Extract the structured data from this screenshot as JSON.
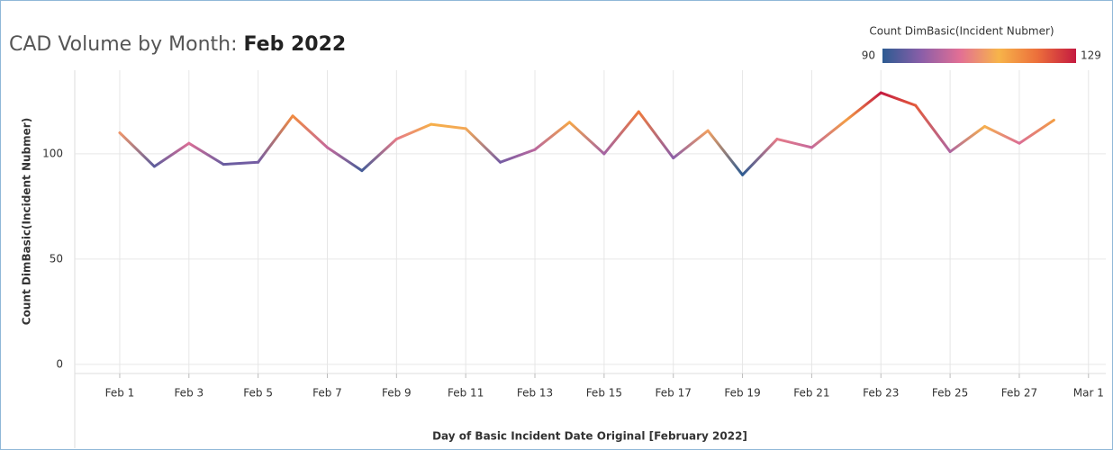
{
  "chart_data": {
    "type": "line",
    "title": "CAD Volume by Month:",
    "title_highlight": "Feb 2022",
    "y_label": "Count DimBasic(Incident Nubmer)",
    "x_label": "Day of Basic Incident Date Original [February 2022]",
    "x": [
      1,
      2,
      3,
      4,
      5,
      6,
      7,
      8,
      9,
      10,
      11,
      12,
      13,
      14,
      15,
      16,
      17,
      18,
      19,
      20,
      21,
      22,
      23,
      24,
      25,
      26,
      27,
      28
    ],
    "values": [
      110,
      94,
      105,
      95,
      96,
      118,
      103,
      92,
      107,
      114,
      112,
      96,
      102,
      115,
      100,
      120,
      98,
      111,
      90,
      107,
      103,
      116,
      129,
      123,
      101,
      113,
      105,
      116
    ],
    "xlim": [
      -0.3,
      29.5
    ],
    "xticks": [
      {
        "value": 1,
        "label": "Feb 1"
      },
      {
        "value": 3,
        "label": "Feb 3"
      },
      {
        "value": 5,
        "label": "Feb 5"
      },
      {
        "value": 7,
        "label": "Feb 7"
      },
      {
        "value": 9,
        "label": "Feb 9"
      },
      {
        "value": 11,
        "label": "Feb 11"
      },
      {
        "value": 13,
        "label": "Feb 13"
      },
      {
        "value": 15,
        "label": "Feb 15"
      },
      {
        "value": 17,
        "label": "Feb 17"
      },
      {
        "value": 19,
        "label": "Feb 19"
      },
      {
        "value": 21,
        "label": "Feb 21"
      },
      {
        "value": 23,
        "label": "Feb 23"
      },
      {
        "value": 25,
        "label": "Feb 25"
      },
      {
        "value": 27,
        "label": "Feb 27"
      },
      {
        "value": 29,
        "label": "Mar 1"
      }
    ],
    "ylim": [
      -4.3,
      139.7
    ],
    "yticks": [
      0,
      50,
      100
    ],
    "grid": true,
    "color_legend": {
      "title": "Count DimBasic(Incident Nubmer)",
      "min": 90,
      "max": 129,
      "colors": [
        "#2d5b92",
        "#8a5ea8",
        "#e26f95",
        "#f7b44a",
        "#ec6f3b",
        "#c41a40"
      ]
    }
  }
}
